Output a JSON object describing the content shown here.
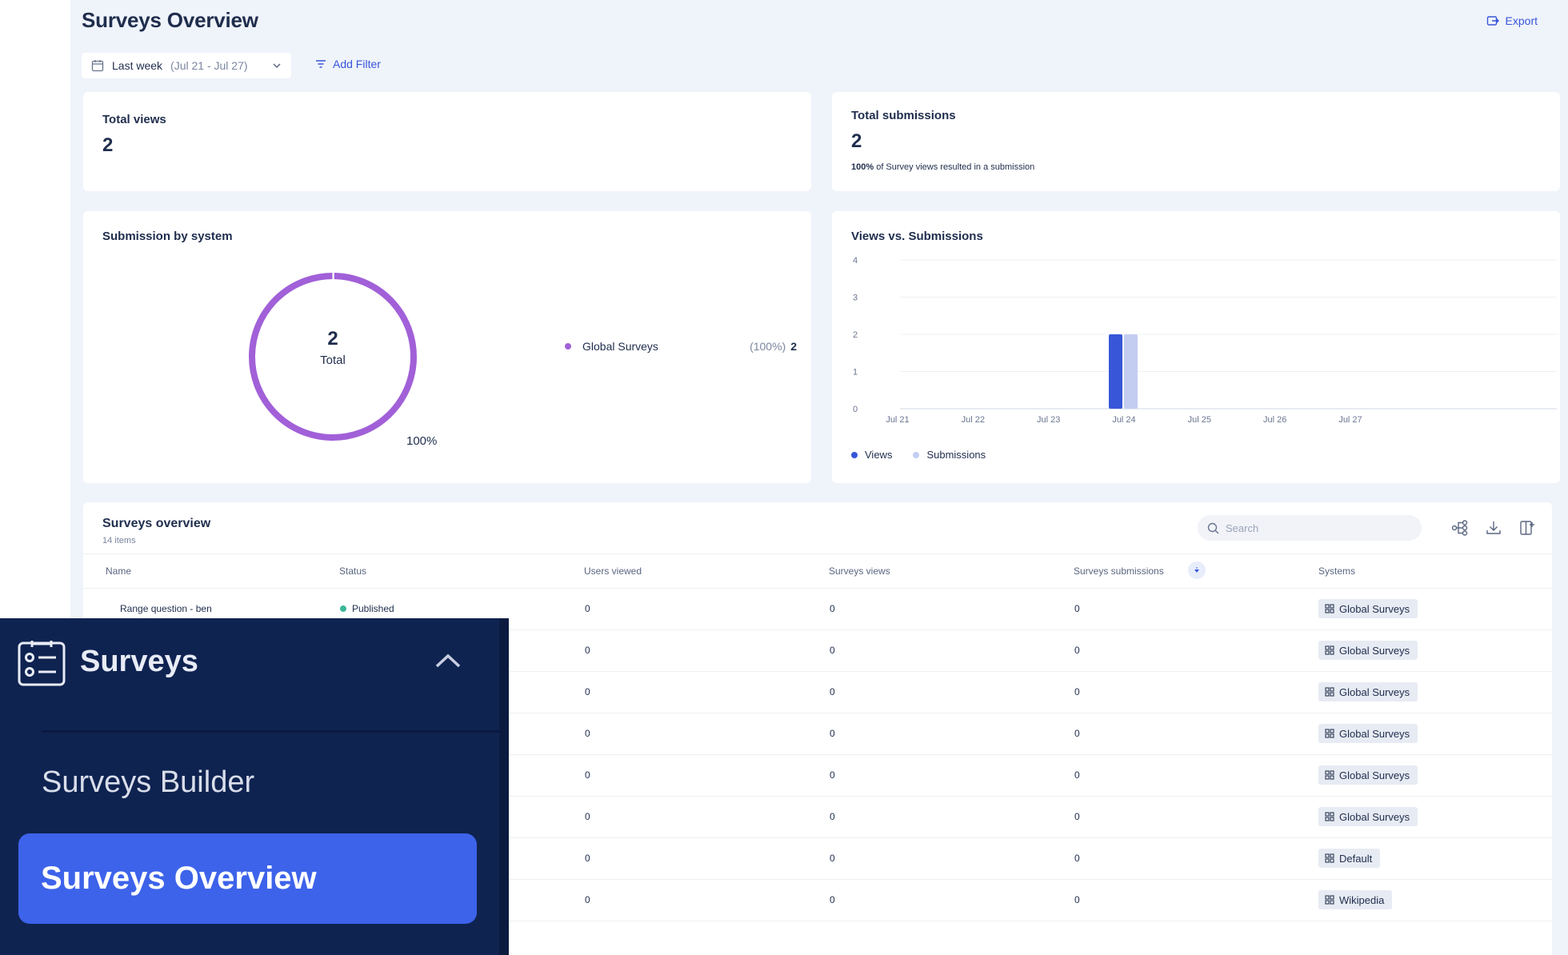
{
  "header": {
    "title": "Surveys Overview",
    "export_label": "Export"
  },
  "filters": {
    "date_label": "Last week",
    "date_range": "(Jul 21 - Jul 27)",
    "add_filter_label": "Add Filter"
  },
  "kpis": {
    "total_views": {
      "title": "Total views",
      "value": "2"
    },
    "total_submissions": {
      "title": "Total submissions",
      "value": "2",
      "note_bold": "100%",
      "note_rest": " of Survey views resulted in a submission"
    }
  },
  "submission_by_system": {
    "title": "Submission by system",
    "total_value": "2",
    "total_label": "Total",
    "percent_label": "100%",
    "legend": [
      {
        "name": "Global Surveys",
        "pct": "(100%)",
        "value": "2",
        "color": "#a160d8"
      }
    ]
  },
  "views_vs_submissions": {
    "title": "Views vs. Submissions",
    "legend_views": "Views",
    "legend_submissions": "Submissions"
  },
  "chart_data": {
    "type": "bar",
    "title": "Views vs. Submissions",
    "categories": [
      "Jul 21",
      "Jul 22",
      "Jul 23",
      "Jul 24",
      "Jul 25",
      "Jul 26",
      "Jul 27"
    ],
    "series": [
      {
        "name": "Views",
        "values": [
          0,
          0,
          0,
          2,
          0,
          0,
          0
        ],
        "color": "#3756d8"
      },
      {
        "name": "Submissions",
        "values": [
          0,
          0,
          0,
          2,
          0,
          0,
          0
        ],
        "color": "#c3cdf2"
      }
    ],
    "yticks": [
      "0",
      "1",
      "2",
      "3",
      "4"
    ],
    "ylim": [
      0,
      4
    ],
    "grid": true,
    "legend_position": "bottom-left"
  },
  "table": {
    "title": "Surveys overview",
    "count": "14 items",
    "search_placeholder": "Search",
    "columns": [
      "Name",
      "Status",
      "Users viewed",
      "Surveys views",
      "Surveys submissions",
      "Systems"
    ],
    "rows": [
      {
        "name": "Range question - ben",
        "status": "Published",
        "users_viewed": "0",
        "views": "0",
        "submissions": "0",
        "system": "Global Surveys"
      },
      {
        "name": "",
        "status": "",
        "users_viewed": "0",
        "views": "0",
        "submissions": "0",
        "system": "Global Surveys"
      },
      {
        "name": "",
        "status": "",
        "users_viewed": "0",
        "views": "0",
        "submissions": "0",
        "system": "Global Surveys"
      },
      {
        "name": "",
        "status": "",
        "users_viewed": "0",
        "views": "0",
        "submissions": "0",
        "system": "Global Surveys"
      },
      {
        "name": "",
        "status": "",
        "users_viewed": "0",
        "views": "0",
        "submissions": "0",
        "system": "Global Surveys"
      },
      {
        "name": "",
        "status": "",
        "users_viewed": "0",
        "views": "0",
        "submissions": "0",
        "system": "Global Surveys"
      },
      {
        "name": "",
        "status": "",
        "users_viewed": "0",
        "views": "0",
        "submissions": "0",
        "system": "Default"
      },
      {
        "name": "",
        "status": "",
        "users_viewed": "0",
        "views": "0",
        "submissions": "0",
        "system": "Wikipedia"
      }
    ]
  },
  "nav": {
    "section_title": "Surveys",
    "items": [
      {
        "label": "Surveys Builder"
      },
      {
        "label": "Surveys Overview"
      }
    ]
  }
}
